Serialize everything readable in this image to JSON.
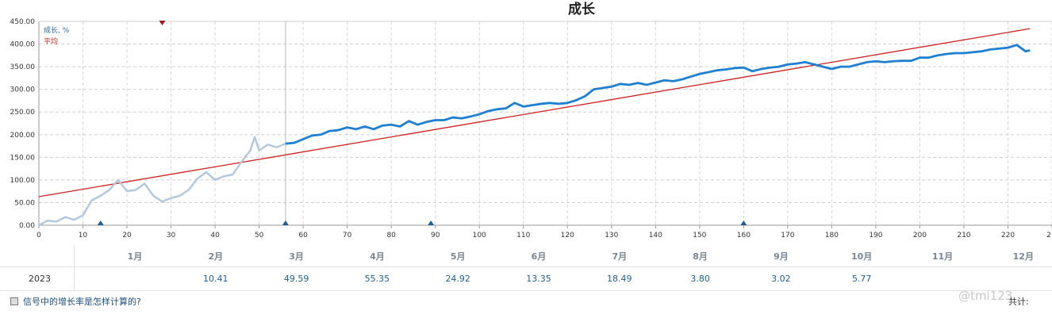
{
  "chart_data": {
    "type": "line",
    "title": "成长",
    "xlabel": "",
    "ylabel": "",
    "xlim": [
      0,
      230
    ],
    "ylim": [
      0,
      450
    ],
    "grid": true,
    "legend_position": "top-left",
    "x_ticks": [
      "0",
      "10",
      "20",
      "30",
      "40",
      "50",
      "60",
      "70",
      "80",
      "90",
      "100",
      "110",
      "120",
      "130",
      "140",
      "150",
      "160",
      "170",
      "180",
      "190",
      "200",
      "210",
      "220",
      "2"
    ],
    "y_ticks": [
      "0.00",
      "50.00",
      "100.00",
      "150.00",
      "200.00",
      "250.00",
      "300.00",
      "350.00",
      "400.00",
      "450.00"
    ],
    "series": [
      {
        "name": "成长, %",
        "color": "#1f7fd0",
        "faded_color": "#b3c8db",
        "faded_until_x": 56,
        "x": [
          0,
          2,
          4,
          6,
          8,
          10,
          12,
          14,
          16,
          18,
          20,
          22,
          24,
          26,
          28,
          30,
          32,
          34,
          36,
          38,
          40,
          42,
          44,
          46,
          48,
          49,
          50,
          52,
          54,
          56,
          58,
          60,
          62,
          64,
          66,
          68,
          70,
          72,
          74,
          76,
          78,
          80,
          82,
          84,
          86,
          88,
          90,
          92,
          94,
          96,
          98,
          100,
          102,
          104,
          106,
          108,
          110,
          112,
          114,
          116,
          118,
          120,
          122,
          124,
          126,
          128,
          130,
          132,
          134,
          136,
          138,
          140,
          142,
          144,
          146,
          148,
          150,
          152,
          154,
          156,
          158,
          160,
          162,
          164,
          166,
          168,
          170,
          172,
          174,
          176,
          178,
          180,
          182,
          184,
          186,
          188,
          190,
          192,
          194,
          196,
          198,
          200,
          202,
          204,
          206,
          208,
          210,
          212,
          214,
          216,
          218,
          220,
          222,
          224,
          225
        ],
        "y": [
          0,
          10,
          8,
          18,
          12,
          22,
          55,
          65,
          78,
          100,
          75,
          78,
          92,
          65,
          52,
          60,
          65,
          78,
          103,
          117,
          100,
          108,
          112,
          140,
          165,
          195,
          165,
          178,
          172,
          180,
          182,
          190,
          198,
          200,
          208,
          210,
          216,
          212,
          218,
          212,
          220,
          222,
          218,
          230,
          222,
          228,
          232,
          232,
          238,
          236,
          240,
          245,
          252,
          256,
          258,
          270,
          262,
          265,
          268,
          270,
          268,
          270,
          276,
          285,
          300,
          303,
          306,
          312,
          310,
          314,
          310,
          315,
          320,
          318,
          322,
          328,
          334,
          338,
          342,
          344,
          347,
          348,
          340,
          345,
          348,
          350,
          355,
          357,
          360,
          355,
          350,
          345,
          350,
          350,
          355,
          360,
          362,
          360,
          362,
          363,
          363,
          370,
          370,
          375,
          378,
          380,
          380,
          382,
          384,
          388,
          390,
          392,
          398,
          384,
          386
        ]
      },
      {
        "name": "平均",
        "color": "#cc2020",
        "x": [
          0,
          225
        ],
        "y": [
          63,
          434
        ]
      }
    ],
    "markers_bottom": [
      14,
      56,
      89,
      160
    ],
    "marker_top_x": 28
  },
  "months_table": {
    "year": "2023",
    "months": [
      "1月",
      "2月",
      "3月",
      "4月",
      "5月",
      "6月",
      "7月",
      "8月",
      "9月",
      "10月",
      "11月",
      "12月"
    ],
    "values": [
      "",
      "10.41",
      "49.59",
      "55.35",
      "24.92",
      "13.35",
      "18.49",
      "3.80",
      "3.02",
      "5.77",
      "",
      ""
    ]
  },
  "footer": {
    "faq_link": "信号中的增长率是怎样计算的?",
    "total_label": "共计:",
    "watermark": "@tmi123"
  }
}
